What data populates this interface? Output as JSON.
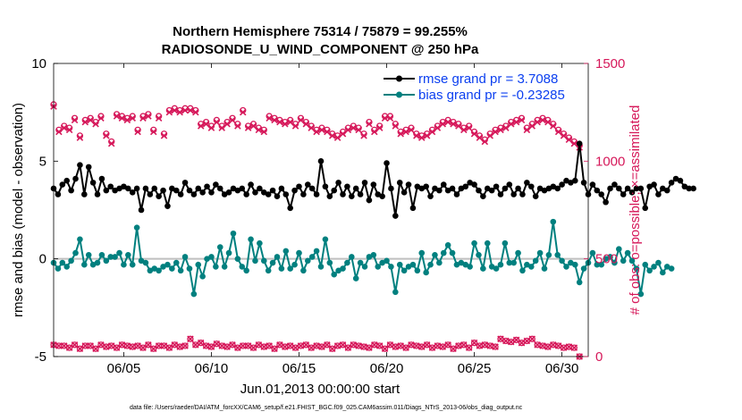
{
  "chart_data": {
    "type": "line",
    "title_line1": "Northern Hemisphere 75314 / 75879 = 99.255%",
    "title_line2": "RADIOSONDE_U_WIND_COMPONENT @ 250 hPa",
    "xlabel": "Jun.01,2013 00:00:00 start",
    "ylabel_left": "rmse and bias (model - observation)",
    "ylabel_right": "# of obs: o=possible; ×=assimilated",
    "footnote": "data file: /Users/raeder/DAI/ATM_forcXX/CAM6_setup/f.e21.FHIST_BGC.f09_025.CAM6assim.011/Diags_NTrS_2013-06/obs_diag_output.nc",
    "xlim": [
      1,
      31.5
    ],
    "ylim_left": [
      -5,
      10
    ],
    "ylim_right": [
      0,
      1500
    ],
    "x_ticks": [
      5,
      10,
      15,
      20,
      25,
      30
    ],
    "x_tick_labels": [
      "06/05",
      "06/10",
      "06/15",
      "06/20",
      "06/25",
      "06/30"
    ],
    "y_left_ticks": [
      -5,
      0,
      5,
      10
    ],
    "y_left_tick_labels": [
      "-5",
      "0",
      "5",
      "10"
    ],
    "y_right_ticks": [
      0,
      500,
      1000,
      1500
    ],
    "y_right_tick_labels": [
      "0",
      "500",
      "1000",
      "1500"
    ],
    "colors": {
      "rmse": "#000000",
      "bias": "#00807f",
      "obs": "#d6185a",
      "zero_line": "#bfbfbf",
      "legend_text": "#0b3ff0"
    },
    "legend": [
      {
        "name": "rmse grand pr = 3.7088",
        "key": "rmse"
      },
      {
        "name": "bias grand pr = -0.23285",
        "key": "bias"
      }
    ],
    "x_start": 1,
    "x_step": 0.25,
    "series": [
      {
        "name": "rmse",
        "values": [
          3.6,
          3.3,
          3.8,
          4.0,
          3.5,
          4.1,
          4.8,
          3.3,
          4.7,
          3.9,
          3.3,
          4.1,
          3.5,
          3.7,
          3.5,
          3.6,
          3.7,
          3.6,
          3.4,
          3.6,
          2.5,
          3.6,
          3.3,
          3.6,
          3.2,
          3.5,
          2.7,
          3.6,
          3.5,
          3.3,
          3.9,
          3.5,
          3.3,
          3.6,
          3.4,
          3.7,
          3.4,
          3.8,
          3.6,
          3.3,
          3.4,
          3.6,
          3.5,
          3.6,
          3.3,
          3.8,
          3.4,
          3.6,
          3.4,
          3.3,
          3.5,
          3.2,
          3.6,
          3.3,
          2.6,
          3.5,
          3.7,
          3.3,
          3.8,
          3.6,
          3.3,
          5.0,
          3.7,
          3.2,
          3.5,
          3.9,
          3.3,
          3.7,
          3.2,
          3.6,
          3.3,
          3.9,
          3.0,
          3.8,
          3.3,
          3.2,
          4.9,
          3.6,
          2.2,
          3.9,
          3.4,
          3.8,
          2.6,
          3.7,
          3.6,
          3.7,
          3.2,
          3.6,
          3.5,
          3.8,
          3.5,
          3.6,
          3.3,
          3.6,
          3.7,
          3.9,
          3.8,
          3.5,
          3.2,
          3.6,
          3.5,
          3.7,
          3.3,
          3.6,
          3.8,
          3.3,
          3.6,
          3.3,
          3.9,
          3.7,
          3.2,
          3.6,
          3.5,
          3.6,
          3.7,
          3.6,
          3.8,
          4.0,
          3.9,
          4.0,
          5.9,
          3.9,
          3.3,
          3.8,
          3.5,
          3.3,
          2.9,
          3.6,
          3.8,
          3.6,
          3.3,
          3.6,
          3.4,
          3.6,
          3.6,
          2.6,
          3.7,
          3.8,
          3.3,
          3.6,
          3.5,
          3.9,
          4.1,
          4.0,
          3.7,
          3.6,
          3.6
        ],
        "gaps_after_index": []
      },
      {
        "name": "bias",
        "values": [
          -0.2,
          -0.5,
          -0.2,
          -0.4,
          -0.1,
          0.3,
          1.0,
          -0.3,
          0.2,
          -0.3,
          -0.2,
          0.2,
          -0.1,
          0.1,
          0.1,
          0.3,
          -0.3,
          0.2,
          -0.3,
          1.6,
          -0.1,
          -0.2,
          -0.6,
          -0.5,
          -0.6,
          -0.4,
          -0.3,
          -0.5,
          -0.2,
          -0.6,
          0.1,
          -0.5,
          -1.8,
          -0.3,
          -0.9,
          0.0,
          0.1,
          -0.4,
          0.6,
          -0.4,
          0.3,
          1.3,
          0.0,
          -0.4,
          -0.6,
          1.0,
          -0.1,
          0.8,
          -0.1,
          -0.6,
          -0.2,
          0.1,
          -0.5,
          0.4,
          -0.5,
          -0.3,
          0.3,
          -0.6,
          -0.1,
          0.1,
          0.4,
          -0.4,
          1.0,
          -0.2,
          -0.8,
          -0.6,
          -0.5,
          -0.2,
          0.1,
          -1.0,
          -0.2,
          -0.4,
          0.1,
          0.2,
          -0.4,
          -0.2,
          -0.1,
          -0.4,
          -1.7,
          -0.3,
          -0.6,
          -0.4,
          -0.3,
          -0.6,
          0.3,
          -0.7,
          -0.3,
          0.2,
          -0.2,
          0.3,
          0.7,
          0.3,
          -0.3,
          -0.2,
          -0.3,
          -0.4,
          0.8,
          0.2,
          -0.5,
          0.8,
          -0.4,
          -0.5,
          -0.3,
          0.8,
          -0.2,
          -0.2,
          0.3,
          -0.6,
          -0.3,
          -0.4,
          -0.1,
          0.3,
          -0.5,
          0.2,
          1.9,
          0.2,
          -0.1,
          -0.4,
          -0.2,
          -0.3,
          -1.2,
          -0.5,
          -0.2,
          0.3,
          -0.3,
          -0.3,
          0.0,
          0.1,
          -0.2,
          0.5,
          -0.1,
          0.3,
          -0.1,
          -0.5,
          -1.8,
          -0.3,
          -0.6,
          -0.4,
          -0.2,
          -0.7,
          -0.4,
          -0.5
        ]
      }
    ],
    "obs_possible_upper": [
      1290,
      1160,
      1180,
      1170,
      1220,
      1130,
      1210,
      1220,
      1200,
      1230,
      1140,
      1100,
      1240,
      1230,
      1220,
      1230,
      1160,
      1230,
      1240,
      1160,
      1230,
      1140,
      1260,
      1270,
      1260,
      1270,
      1270,
      1260,
      1190,
      1200,
      1180,
      1210,
      1180,
      1200,
      1220,
      1190,
      1260,
      1180,
      1190,
      1170,
      1160,
      1230,
      1220,
      1210,
      1200,
      1210,
      1190,
      1220,
      1200,
      1180,
      1160,
      1170,
      1160,
      1140,
      1130,
      1150,
      1170,
      1180,
      1170,
      1140,
      1200,
      1160,
      1180,
      1230,
      1230,
      1190,
      1150,
      1160,
      1170,
      1140,
      1130,
      1140,
      1160,
      1180,
      1200,
      1210,
      1200,
      1190,
      1170,
      1180,
      1150,
      1130,
      1110,
      1140,
      1160,
      1170,
      1180,
      1200,
      1210,
      1220,
      1170,
      1190,
      1210,
      1220,
      1210,
      1190,
      1160,
      1140,
      1120,
      1100,
      1080
    ],
    "obs_assimilated_upper": [
      1280,
      1150,
      1170,
      1160,
      1210,
      1120,
      1200,
      1210,
      1190,
      1220,
      1130,
      1090,
      1230,
      1220,
      1210,
      1220,
      1150,
      1220,
      1230,
      1150,
      1220,
      1130,
      1250,
      1260,
      1250,
      1260,
      1260,
      1250,
      1180,
      1190,
      1170,
      1200,
      1170,
      1190,
      1210,
      1180,
      1250,
      1170,
      1180,
      1160,
      1150,
      1220,
      1210,
      1200,
      1190,
      1200,
      1180,
      1210,
      1190,
      1170,
      1150,
      1160,
      1150,
      1130,
      1120,
      1140,
      1160,
      1170,
      1160,
      1130,
      1190,
      1150,
      1170,
      1220,
      1220,
      1180,
      1140,
      1150,
      1160,
      1130,
      1120,
      1130,
      1150,
      1170,
      1190,
      1200,
      1190,
      1180,
      1160,
      1170,
      1140,
      1120,
      1100,
      1130,
      1150,
      1160,
      1170,
      1190,
      1200,
      1210,
      1160,
      1180,
      1200,
      1210,
      1200,
      1180,
      1150,
      1130,
      1110,
      1090,
      1070
    ],
    "obs_lower": [
      60,
      55,
      55,
      45,
      60,
      40,
      55,
      55,
      40,
      60,
      50,
      55,
      45,
      60,
      55,
      50,
      55,
      45,
      60,
      40,
      55,
      55,
      45,
      60,
      50,
      55,
      90,
      60,
      70,
      55,
      50,
      65,
      55,
      50,
      60,
      45,
      55,
      55,
      45,
      60,
      50,
      55,
      40,
      60,
      50,
      55,
      45,
      55,
      60,
      45,
      55,
      50,
      60,
      40,
      55,
      60,
      45,
      60,
      55,
      50,
      45,
      60,
      55,
      40,
      60,
      50,
      55,
      45,
      60,
      55,
      50,
      60,
      45,
      55,
      50,
      60,
      40,
      55,
      60,
      45,
      70,
      55,
      60,
      55,
      50,
      90,
      80,
      75,
      85,
      70,
      80,
      90,
      60,
      55,
      50,
      60,
      55,
      45,
      50,
      45,
      0
    ]
  }
}
